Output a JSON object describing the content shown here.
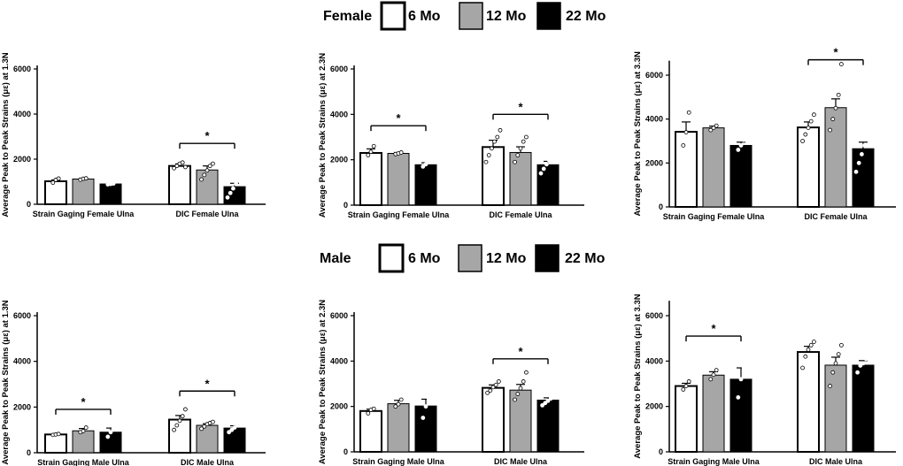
{
  "colors": {
    "g6": "#ffffff",
    "g12": "#a6a6a6",
    "g22": "#000000",
    "axis": "#000000"
  },
  "legends": [
    {
      "title": "Female",
      "items": [
        "6 Mo",
        "12 Mo",
        "22 Mo"
      ]
    },
    {
      "title": "Male",
      "items": [
        "6 Mo",
        "12 Mo",
        "22 Mo"
      ]
    }
  ],
  "chart_data": [
    {
      "type": "bar",
      "ylabel": "Average Peak to Peak Strains (με) at 1.3N",
      "ylim": [
        0,
        6000
      ],
      "yticks": [
        0,
        2000,
        4000,
        6000
      ],
      "group_labels": [
        "Strain Gaging Female Ulna",
        "DIC Female Ulna"
      ],
      "series": [
        "6 Mo",
        "12 Mo",
        "22 Mo"
      ],
      "groups": [
        {
          "values": [
            1020,
            1120,
            900
          ],
          "errors": [
            60,
            30,
            30
          ],
          "points": [
            [
              960,
              1080,
              1140
            ],
            [
              1090,
              1130,
              1150
            ],
            [
              880,
              900,
              920
            ]
          ]
        },
        {
          "values": [
            1700,
            1520,
            780
          ],
          "errors": [
            90,
            180,
            150
          ],
          "points": [
            [
              1600,
              1700,
              1800,
              1850,
              1650
            ],
            [
              1100,
              1300,
              1500,
              1700,
              1800
            ],
            [
              300,
              500,
              700,
              900,
              1100,
              1350
            ]
          ]
        }
      ],
      "sig": [
        {
          "from": [
            1,
            0
          ],
          "to": [
            1,
            2
          ],
          "label": "*",
          "y": 2700
        }
      ]
    },
    {
      "type": "bar",
      "ylabel": "Average Peak to Peak Strains (με) at 2.3N",
      "ylim": [
        0,
        6000
      ],
      "yticks": [
        0,
        2000,
        4000,
        6000
      ],
      "group_labels": [
        "Strain Gaging Female Ulna",
        "DIC Female Ulna"
      ],
      "series": [
        "6 Mo",
        "12 Mo",
        "22 Mo"
      ],
      "groups": [
        {
          "values": [
            2300,
            2280,
            1780
          ],
          "errors": [
            180,
            40,
            90
          ],
          "points": [
            [
              2200,
              2350,
              2600
            ],
            [
              2250,
              2280,
              2320
            ],
            [
              1700,
              1800,
              1900
            ]
          ]
        },
        {
          "values": [
            2560,
            2320,
            1780
          ],
          "errors": [
            300,
            250,
            150
          ],
          "points": [
            [
              1900,
              2200,
              2500,
              2800,
              3000,
              3300
            ],
            [
              1900,
              2200,
              2500,
              2800,
              3000
            ],
            [
              1400,
              1600,
              1800,
              1950,
              2000,
              2050
            ]
          ]
        }
      ],
      "sig": [
        {
          "from": [
            0,
            0
          ],
          "to": [
            0,
            2
          ],
          "label": "*",
          "y": 3500
        },
        {
          "from": [
            1,
            0
          ],
          "to": [
            1,
            2
          ],
          "label": "*",
          "y": 4000
        }
      ]
    },
    {
      "type": "bar",
      "ylabel": "Average Peak to Peak Strains (με) at 3.3N",
      "ylim": [
        0,
        6500
      ],
      "yticks": [
        0,
        2000,
        4000,
        6000
      ],
      "group_labels": [
        "Strain Gaging Female Ulna",
        "DIC Female Ulna"
      ],
      "series": [
        "6 Mo",
        "12 Mo",
        "22 Mo"
      ],
      "groups": [
        {
          "values": [
            3420,
            3600,
            2800
          ],
          "errors": [
            450,
            80,
            150
          ],
          "points": [
            [
              2800,
              3400,
              4300
            ],
            [
              3500,
              3600,
              3700
            ],
            [
              2600,
              2800,
              3050
            ]
          ]
        },
        {
          "values": [
            3620,
            4520,
            2650
          ],
          "errors": [
            250,
            400,
            300
          ],
          "points": [
            [
              3000,
              3300,
              3600,
              3900,
              4200
            ],
            [
              3500,
              4000,
              4500,
              5100,
              6500
            ],
            [
              1600,
              2000,
              2400,
              2800,
              3400,
              3700
            ]
          ]
        }
      ],
      "sig": [
        {
          "from": [
            1,
            0
          ],
          "to": [
            1,
            2
          ],
          "label": "*",
          "y": 6700
        }
      ]
    },
    {
      "type": "bar",
      "ylabel": "Average Peak to Peak Strains (με) at 1.3N",
      "ylim": [
        0,
        6000
      ],
      "yticks": [
        0,
        2000,
        4000,
        6000
      ],
      "group_labels": [
        "Strain Gaging Male Ulna",
        "DIC Male Ulna"
      ],
      "series": [
        "6 Mo",
        "12 Mo",
        "22 Mo"
      ],
      "groups": [
        {
          "values": [
            800,
            960,
            900
          ],
          "errors": [
            30,
            100,
            180
          ],
          "points": [
            [
              780,
              800,
              820
            ],
            [
              900,
              950,
              1100
            ],
            [
              700,
              900,
              1050
            ]
          ]
        },
        {
          "values": [
            1450,
            1200,
            1080
          ],
          "errors": [
            180,
            70,
            100
          ],
          "points": [
            [
              1000,
              1200,
              1400,
              1600,
              1900
            ],
            [
              1050,
              1150,
              1250,
              1300,
              1350
            ],
            [
              900,
              1000,
              1100,
              1200,
              1300
            ]
          ]
        }
      ],
      "sig": [
        {
          "from": [
            0,
            0
          ],
          "to": [
            0,
            2
          ],
          "label": "*",
          "y": 1900
        },
        {
          "from": [
            1,
            0
          ],
          "to": [
            1,
            2
          ],
          "label": "*",
          "y": 2700
        }
      ]
    },
    {
      "type": "bar",
      "ylabel": "Average Peak to Peak Strains (με) at 2.3N",
      "ylim": [
        0,
        6000
      ],
      "yticks": [
        0,
        2000,
        4000,
        6000
      ],
      "group_labels": [
        "Strain Gaging Male Ulna",
        "DIC Male Ulna"
      ],
      "series": [
        "6 Mo",
        "12 Mo",
        "22 Mo"
      ],
      "groups": [
        {
          "values": [
            1800,
            2120,
            2020
          ],
          "errors": [
            80,
            150,
            300
          ],
          "points": [
            [
              1700,
              1850,
              1900
            ],
            [
              2000,
              2100,
              2300
            ],
            [
              1500,
              2000,
              2350
            ]
          ]
        },
        {
          "values": [
            2820,
            2720,
            2280
          ],
          "errors": [
            130,
            250,
            100
          ],
          "points": [
            [
              2600,
              2700,
              2850,
              2950,
              3100
            ],
            [
              2300,
              2550,
              2800,
              3100,
              3500
            ],
            [
              2050,
              2150,
              2250,
              2350,
              2450
            ]
          ]
        }
      ],
      "sig": [
        {
          "from": [
            1,
            0
          ],
          "to": [
            1,
            2
          ],
          "label": "*",
          "y": 4100
        }
      ]
    },
    {
      "type": "bar",
      "ylabel": "Average Peak to Peak Strains (με) at 3.3N",
      "ylim": [
        0,
        6500
      ],
      "yticks": [
        0,
        2000,
        4000,
        6000
      ],
      "group_labels": [
        "Strain Gaging Male Ulna",
        "DIC Male Ulna"
      ],
      "series": [
        "6 Mo",
        "12 Mo",
        "22 Mo"
      ],
      "groups": [
        {
          "values": [
            2900,
            3380,
            3200
          ],
          "errors": [
            120,
            150,
            500
          ],
          "points": [
            [
              2750,
              2900,
              3100
            ],
            [
              3200,
              3400,
              3600
            ],
            [
              2400,
              3200,
              3700
            ]
          ]
        },
        {
          "values": [
            4400,
            3820,
            3820
          ],
          "errors": [
            250,
            350,
            200
          ],
          "points": [
            [
              3700,
              4200,
              4500,
              4700,
              4850
            ],
            [
              2900,
              3500,
              3900,
              4300,
              4700
            ],
            [
              3500,
              3800,
              3900,
              4100,
              4400
            ]
          ]
        }
      ],
      "sig": [
        {
          "from": [
            0,
            0
          ],
          "to": [
            0,
            2
          ],
          "label": "*",
          "y": 5100
        }
      ]
    }
  ]
}
